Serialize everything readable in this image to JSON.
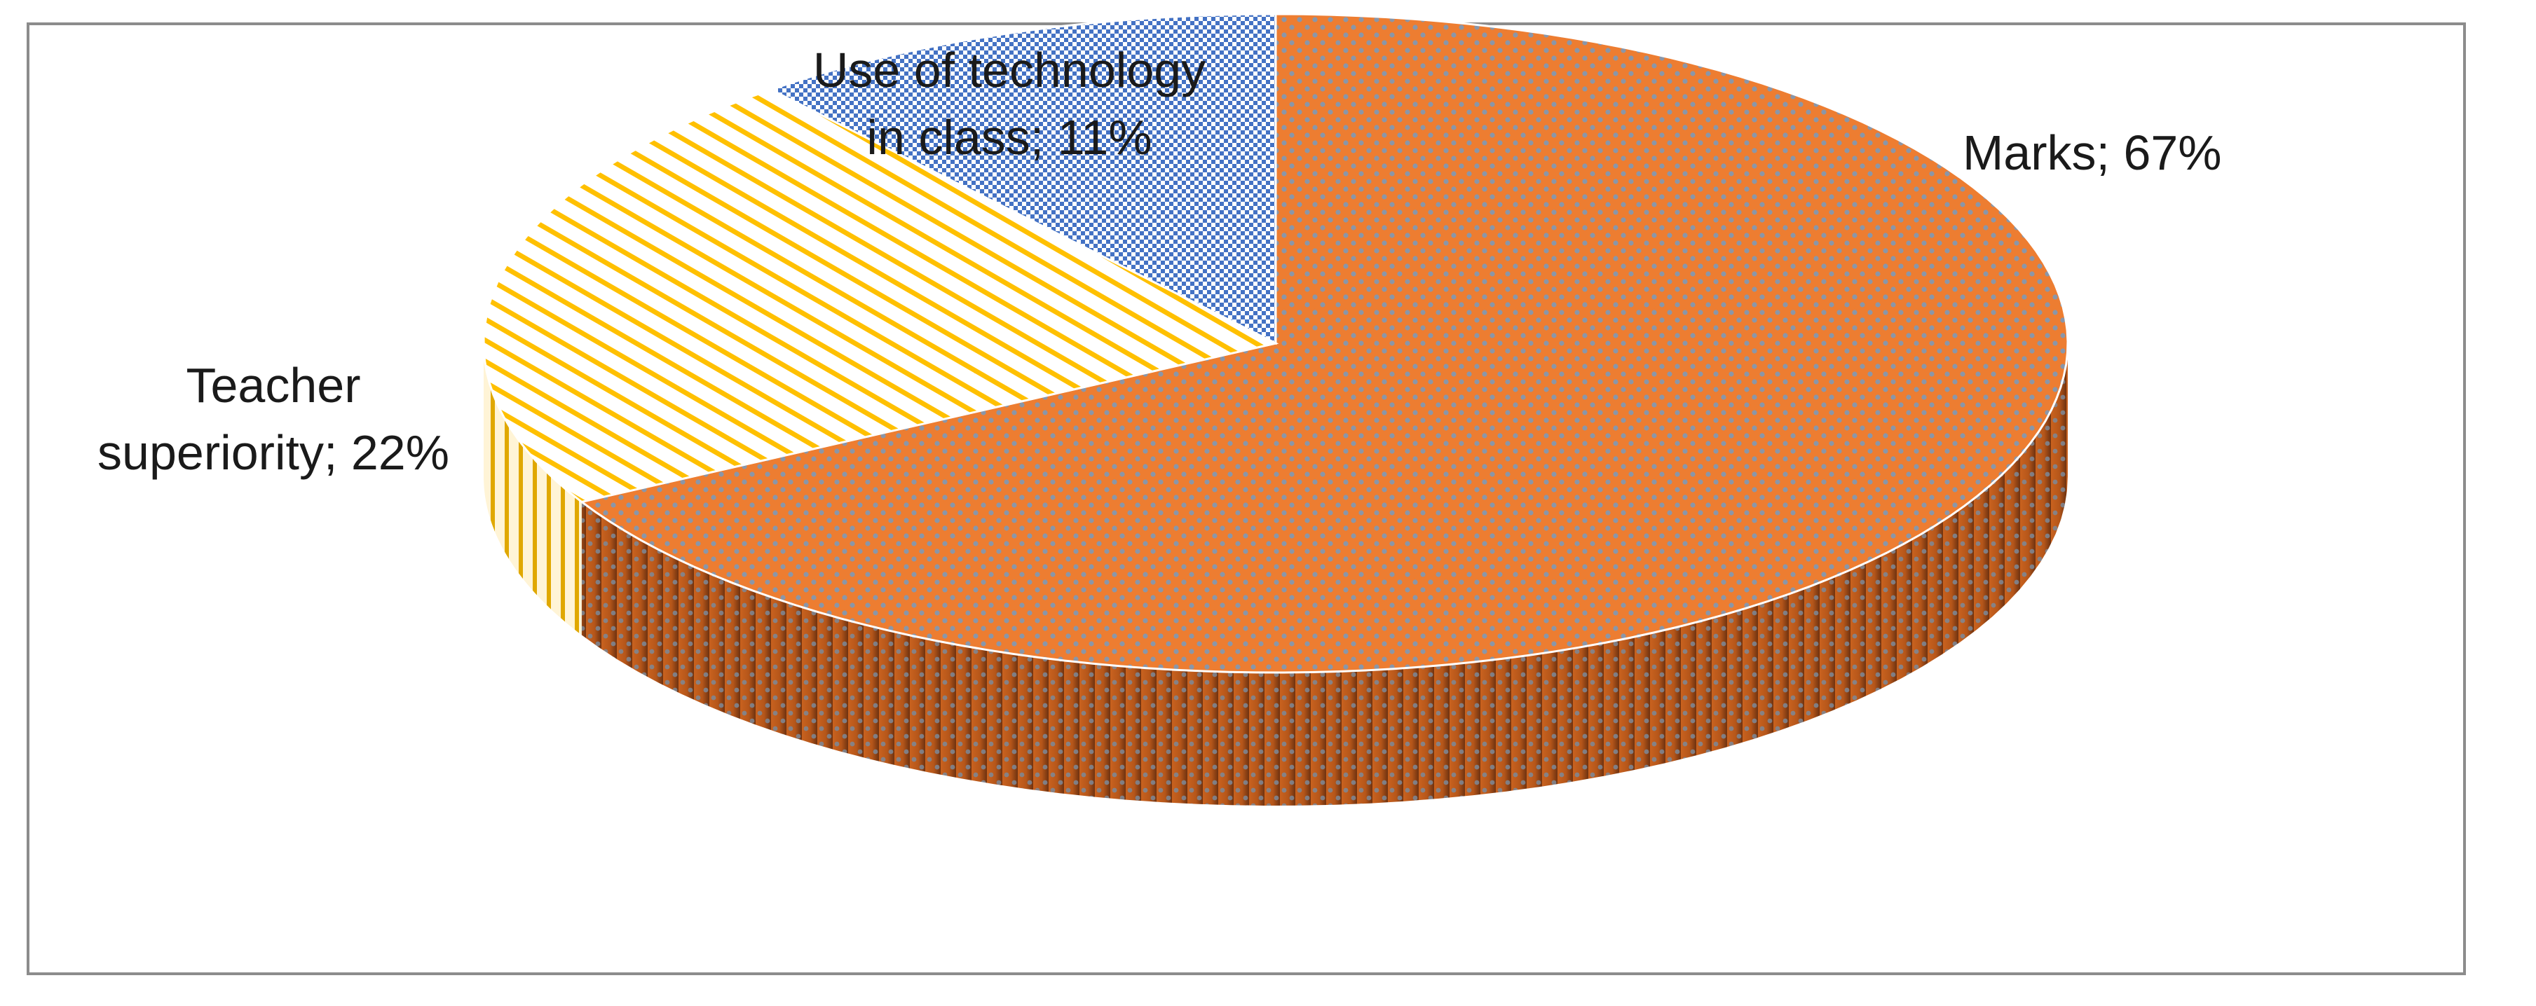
{
  "chart_data": {
    "type": "pie",
    "title": "",
    "three_d": true,
    "slices": [
      {
        "label": "Marks",
        "value": 67,
        "display": "Marks; 67%",
        "color": "#ed7d31",
        "pattern": "dots"
      },
      {
        "label": "Teacher superiority",
        "value": 22,
        "display_lines": [
          "Teacher",
          "superiority; 22%"
        ],
        "color": "#ffc000",
        "pattern": "diagonal-stripes"
      },
      {
        "label": "Use of technology in class",
        "value": 11,
        "display_lines": [
          "Use of technology",
          "in class; 11%"
        ],
        "color": "#4472c4",
        "pattern": "checker"
      }
    ]
  }
}
